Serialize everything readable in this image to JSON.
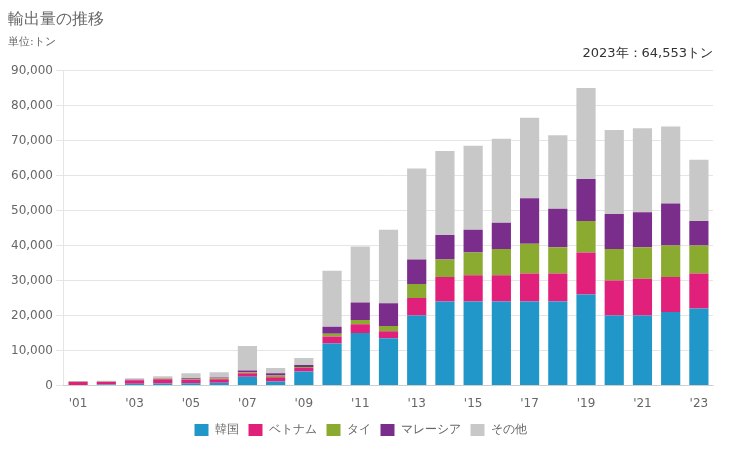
{
  "chart_data": {
    "type": "bar",
    "title": "輸出量の推移",
    "subtitle": "単位:トン",
    "annotation": "2023年：64,553トン",
    "categories": [
      "'01",
      null,
      "'03",
      null,
      "'05",
      null,
      "'07",
      null,
      "'09",
      null,
      "'11",
      null,
      "'13",
      null,
      "'15",
      null,
      "'17",
      null,
      "'19",
      null,
      "'21",
      null,
      "'23"
    ],
    "series": [
      {
        "name": "韓国",
        "color": "#2196c8",
        "values": [
          200,
          300,
          500,
          600,
          700,
          800,
          2500,
          1200,
          4000,
          12000,
          15000,
          13500,
          20000,
          24000,
          24000,
          24000,
          24000,
          24000,
          26000,
          20000,
          20000,
          21000,
          22000
        ]
      },
      {
        "name": "ベトナム",
        "color": "#e0207a",
        "values": [
          800,
          700,
          1000,
          1200,
          1000,
          1000,
          1000,
          1200,
          1000,
          2000,
          2500,
          2000,
          5000,
          7000,
          7500,
          7500,
          8000,
          8000,
          12000,
          10000,
          10500,
          10000,
          10000
        ]
      },
      {
        "name": "タイ",
        "color": "#8aab30",
        "values": [
          100,
          100,
          100,
          200,
          200,
          300,
          300,
          500,
          300,
          800,
          1200,
          1500,
          4000,
          5000,
          6500,
          7500,
          8500,
          7500,
          9000,
          9000,
          9000,
          9000,
          8000
        ]
      },
      {
        "name": "マレーシア",
        "color": "#7b2d8b",
        "values": [
          100,
          100,
          100,
          100,
          200,
          200,
          500,
          600,
          600,
          2000,
          5000,
          6500,
          7000,
          7000,
          6500,
          7500,
          13000,
          11000,
          12000,
          10000,
          10000,
          12000,
          7000
        ]
      },
      {
        "name": "その他",
        "color": "#c8c8c8",
        "values": [
          100,
          200,
          400,
          600,
          1400,
          1500,
          7000,
          1500,
          2000,
          16000,
          16000,
          21000,
          26000,
          24000,
          24000,
          24000,
          23000,
          21000,
          26000,
          24000,
          24000,
          22000,
          17500
        ]
      }
    ],
    "stacked": true,
    "ylim": [
      0,
      90000
    ],
    "yticks": [
      0,
      {
        "value": 10000,
        "label": "10,000"
      },
      {
        "value": 20000,
        "label": "20,000"
      },
      {
        "value": 30000,
        "label": "30,000"
      },
      {
        "value": 40000,
        "label": "40,000"
      },
      {
        "value": 50000,
        "label": "50,000"
      },
      {
        "value": 60000,
        "label": "60,000"
      },
      {
        "value": 70000,
        "label": "70,000"
      },
      {
        "value": 80000,
        "label": "80,000"
      },
      {
        "value": 90000,
        "label": "90,000"
      }
    ],
    "grid": true,
    "legend": "bottom"
  }
}
